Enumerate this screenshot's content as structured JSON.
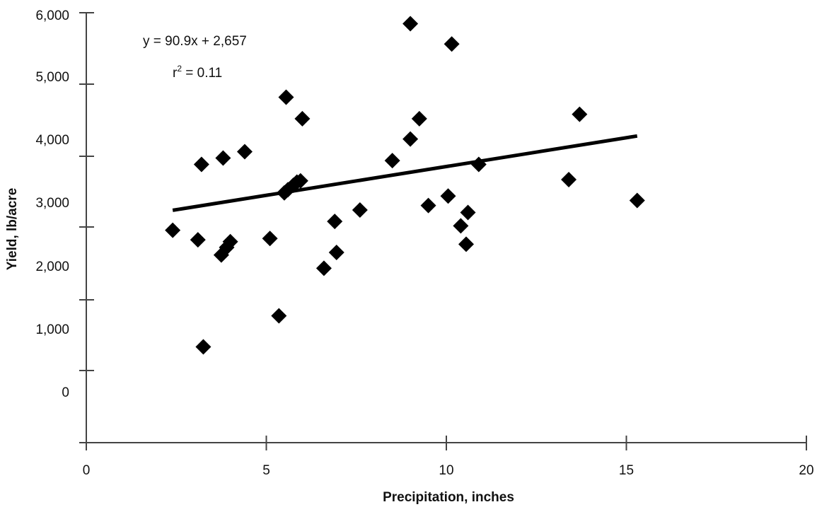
{
  "chart_data": {
    "type": "scatter",
    "title": "",
    "xlabel": "Precipitation, inches",
    "ylabel": "Yield, lb/acre",
    "xlim": [
      0,
      20
    ],
    "ylim": [
      0,
      6000
    ],
    "x_ticks": [
      0,
      5,
      10,
      15,
      20
    ],
    "x_tick_labels": [
      "0",
      "5",
      "10",
      "15",
      "20"
    ],
    "y_ticks": [
      0,
      1000,
      2000,
      3000,
      4000,
      5000,
      6000
    ],
    "y_tick_labels": [
      "0",
      "1,000",
      "2,000",
      "3,000",
      "4,000",
      "5,000",
      "6,000"
    ],
    "grid": false,
    "legend": "none",
    "marker": "diamond",
    "marker_color": "#000000",
    "trendline": {
      "intercept": 2657,
      "slope": 90.9,
      "x_range": [
        2.4,
        15.3
      ],
      "color": "#000000"
    },
    "annotations": {
      "equation": "y = 90.9x + 2,657",
      "r_squared_prefix": "r",
      "r_squared_sup": "2",
      "r_squared_value": " = 0.11"
    },
    "points": [
      {
        "x": 2.4,
        "y": 2560
      },
      {
        "x": 3.1,
        "y": 2410
      },
      {
        "x": 3.2,
        "y": 3600
      },
      {
        "x": 3.25,
        "y": 720
      },
      {
        "x": 3.8,
        "y": 3700
      },
      {
        "x": 3.75,
        "y": 2170
      },
      {
        "x": 3.9,
        "y": 2290
      },
      {
        "x": 4.0,
        "y": 2380
      },
      {
        "x": 4.4,
        "y": 3800
      },
      {
        "x": 5.1,
        "y": 2430
      },
      {
        "x": 5.35,
        "y": 1210
      },
      {
        "x": 5.5,
        "y": 3150
      },
      {
        "x": 5.6,
        "y": 3200
      },
      {
        "x": 5.55,
        "y": 4660
      },
      {
        "x": 5.75,
        "y": 3270
      },
      {
        "x": 5.85,
        "y": 3320
      },
      {
        "x": 5.95,
        "y": 3340
      },
      {
        "x": 6.0,
        "y": 4320
      },
      {
        "x": 6.6,
        "y": 1960
      },
      {
        "x": 6.9,
        "y": 2700
      },
      {
        "x": 6.95,
        "y": 2210
      },
      {
        "x": 7.6,
        "y": 2880
      },
      {
        "x": 8.5,
        "y": 3660
      },
      {
        "x": 9.0,
        "y": 5820
      },
      {
        "x": 9.0,
        "y": 4000
      },
      {
        "x": 9.25,
        "y": 4320
      },
      {
        "x": 9.5,
        "y": 2950
      },
      {
        "x": 10.05,
        "y": 3100
      },
      {
        "x": 10.15,
        "y": 5500
      },
      {
        "x": 10.4,
        "y": 2630
      },
      {
        "x": 10.6,
        "y": 2840
      },
      {
        "x": 10.55,
        "y": 2340
      },
      {
        "x": 10.9,
        "y": 3600
      },
      {
        "x": 13.4,
        "y": 3360
      },
      {
        "x": 13.7,
        "y": 4390
      },
      {
        "x": 15.3,
        "y": 3030
      }
    ]
  }
}
